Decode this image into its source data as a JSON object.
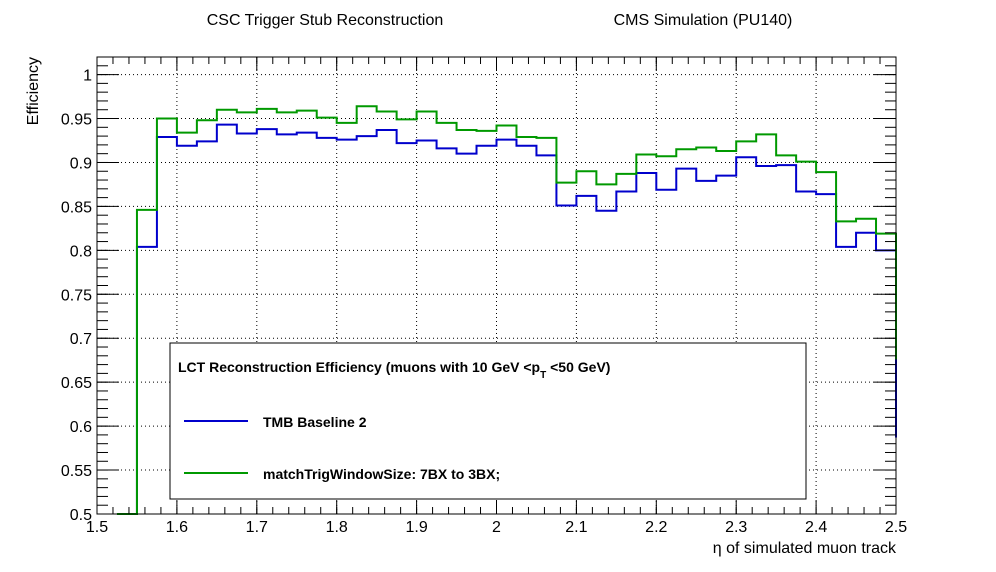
{
  "header": {
    "left_title": "CSC Trigger Stub Reconstruction",
    "right_title": "CMS Simulation (PU140)"
  },
  "chart_data": {
    "type": "line",
    "step": true,
    "xlabel": "η of simulated muon track",
    "ylabel": "Efficiency",
    "xlim": [
      1.5,
      2.5
    ],
    "ylim": [
      0.5,
      1.02
    ],
    "xticks": [
      "1.5",
      "1.6",
      "1.7",
      "1.8",
      "1.9",
      "2",
      "2.1",
      "2.2",
      "2.3",
      "2.4",
      "2.5"
    ],
    "yticks": [
      "0.5",
      "0.55",
      "0.6",
      "0.65",
      "0.7",
      "0.75",
      "0.8",
      "0.85",
      "0.9",
      "0.95",
      "1"
    ],
    "grid": true,
    "bin_edges": [
      1.525,
      1.55,
      1.575,
      1.6,
      1.625,
      1.65,
      1.675,
      1.7,
      1.725,
      1.75,
      1.775,
      1.8,
      1.825,
      1.85,
      1.875,
      1.9,
      1.925,
      1.95,
      1.975,
      2.0,
      2.025,
      2.05,
      2.075,
      2.1,
      2.125,
      2.15,
      2.175,
      2.2,
      2.225,
      2.25,
      2.275,
      2.3,
      2.325,
      2.35,
      2.375,
      2.4,
      2.425,
      2.45,
      2.475,
      2.5
    ],
    "series": [
      {
        "name": "TMB Baseline 2",
        "color": "#0000cc",
        "values": [
          0.0,
          0.804,
          0.929,
          0.919,
          0.924,
          0.943,
          0.933,
          0.938,
          0.932,
          0.934,
          0.928,
          0.926,
          0.93,
          0.937,
          0.922,
          0.925,
          0.916,
          0.91,
          0.919,
          0.926,
          0.919,
          0.908,
          0.851,
          0.862,
          0.845,
          0.867,
          0.888,
          0.869,
          0.893,
          0.879,
          0.885,
          0.906,
          0.896,
          0.897,
          0.867,
          0.864,
          0.804,
          0.82,
          0.8,
          0.587
        ]
      },
      {
        "name": "matchTrigWindowSize: 7BX to 3BX;",
        "color": "#009900",
        "values": [
          0.0,
          0.846,
          0.95,
          0.934,
          0.948,
          0.96,
          0.957,
          0.961,
          0.957,
          0.959,
          0.951,
          0.945,
          0.964,
          0.958,
          0.949,
          0.958,
          0.945,
          0.937,
          0.936,
          0.942,
          0.929,
          0.928,
          0.877,
          0.89,
          0.875,
          0.887,
          0.909,
          0.907,
          0.915,
          0.917,
          0.913,
          0.924,
          0.932,
          0.908,
          0.901,
          0.889,
          0.833,
          0.836,
          0.819,
          0.676
        ]
      }
    ],
    "legend": {
      "position": "bottom-center",
      "title": "LCT Reconstruction Efficiency  (muons with 10 GeV <p",
      "title_sub": "T",
      "title_end": " <50 GeV)"
    }
  }
}
